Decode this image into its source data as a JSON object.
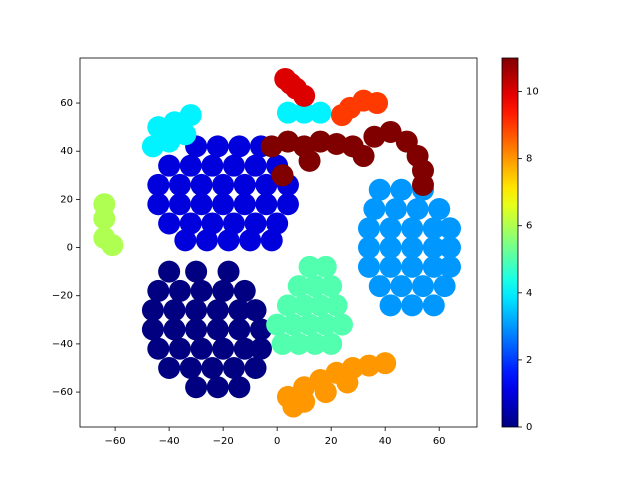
{
  "chart_data": {
    "type": "scatter",
    "cmap": "jet",
    "xlim": [
      -73,
      74
    ],
    "ylim": [
      -74.5,
      78.7
    ],
    "xticks": [
      {
        "value": -60,
        "label": "−60"
      },
      {
        "value": -40,
        "label": "−40"
      },
      {
        "value": -20,
        "label": "−20"
      },
      0,
      20,
      40,
      60
    ],
    "yticks": [
      {
        "value": -60,
        "label": "−60"
      },
      {
        "value": -40,
        "label": "−40"
      },
      {
        "value": -20,
        "label": "−20"
      },
      0,
      20,
      40,
      60
    ],
    "clim": [
      0,
      11
    ],
    "cticks": [
      0,
      2,
      4,
      6,
      8,
      10
    ],
    "series": [
      {
        "c": 1,
        "x": [
          -30,
          -22,
          -14,
          -6,
          -40,
          -32,
          -24,
          -16,
          -8,
          0,
          -44,
          -36,
          -28,
          -20,
          -12,
          -4,
          4,
          -44,
          -36,
          -28,
          -20,
          -12,
          -4,
          4,
          -40,
          -32,
          -24,
          -16,
          -8,
          0,
          -34,
          -26,
          -18,
          -10,
          -2
        ],
        "y": [
          42,
          42,
          42,
          42,
          34,
          34,
          34,
          34,
          34,
          34,
          26,
          26,
          26,
          26,
          26,
          26,
          26,
          18,
          18,
          18,
          18,
          18,
          18,
          18,
          10,
          10,
          10,
          10,
          10,
          10,
          3,
          3,
          3,
          3,
          3
        ]
      },
      {
        "c": 0,
        "x": [
          -40,
          -30,
          -18,
          -44,
          -36,
          -28,
          -20,
          -12,
          -46,
          -38,
          -30,
          -22,
          -14,
          -8,
          -46,
          -38,
          -30,
          -22,
          -14,
          -6,
          -44,
          -36,
          -28,
          -20,
          -12,
          -6,
          -40,
          -32,
          -24,
          -16,
          -8,
          -30,
          -22,
          -14
        ],
        "y": [
          -10,
          -10,
          -10,
          -18,
          -18,
          -18,
          -18,
          -18,
          -26,
          -26,
          -26,
          -26,
          -26,
          -26,
          -34,
          -34,
          -34,
          -34,
          -34,
          -34,
          -42,
          -42,
          -42,
          -42,
          -42,
          -42,
          -50,
          -50,
          -50,
          -50,
          -50,
          -58,
          -58,
          -58
        ]
      },
      {
        "c": 3,
        "x": [
          38,
          46,
          54,
          36,
          44,
          52,
          60,
          34,
          42,
          50,
          58,
          64,
          34,
          42,
          50,
          58,
          64,
          34,
          42,
          50,
          58,
          64,
          38,
          46,
          54,
          62,
          42,
          50,
          58
        ],
        "y": [
          24,
          24,
          24,
          16,
          16,
          16,
          16,
          8,
          8,
          8,
          8,
          8,
          0,
          0,
          0,
          0,
          0,
          -8,
          -8,
          -8,
          -8,
          -8,
          -16,
          -16,
          -16,
          -16,
          -24,
          -24,
          -24
        ]
      },
      {
        "c": 4,
        "x": [
          -44,
          -38,
          -32,
          -46,
          -40,
          -34,
          4,
          10,
          16
        ],
        "y": [
          50,
          52,
          55,
          42,
          44,
          47,
          56,
          56,
          56
        ]
      },
      {
        "c": 5,
        "x": [
          12,
          18,
          8,
          14,
          20,
          4,
          10,
          16,
          22,
          0,
          6,
          12,
          18,
          24,
          2,
          8,
          14,
          20
        ],
        "y": [
          -8,
          -8,
          -16,
          -16,
          -16,
          -24,
          -24,
          -24,
          -24,
          -32,
          -32,
          -32,
          -32,
          -32,
          -40,
          -40,
          -40,
          -40
        ]
      },
      {
        "c": 8,
        "x": [
          4,
          10,
          16,
          22,
          28,
          34,
          40,
          10,
          18,
          26,
          6
        ],
        "y": [
          -62,
          -58,
          -55,
          -52,
          -50,
          -49,
          -48,
          -64,
          -60,
          -56,
          -66
        ]
      },
      {
        "c": 11,
        "x": [
          -2,
          4,
          10,
          16,
          22,
          28,
          32,
          36,
          42,
          48,
          52,
          54,
          54,
          2,
          12
        ],
        "y": [
          42,
          44,
          42,
          44,
          43,
          42,
          38,
          46,
          48,
          44,
          38,
          32,
          26,
          30,
          36
        ]
      },
      {
        "c": 10,
        "x": [
          3,
          7,
          10,
          5
        ],
        "y": [
          70,
          66,
          63,
          68
        ]
      },
      {
        "c": 6,
        "x": [
          -64,
          -64,
          -64,
          -61
        ],
        "y": [
          18,
          12,
          4,
          1
        ]
      },
      {
        "c": 9,
        "x": [
          27,
          32,
          37,
          24
        ],
        "y": [
          58,
          61,
          60,
          55
        ]
      }
    ]
  }
}
